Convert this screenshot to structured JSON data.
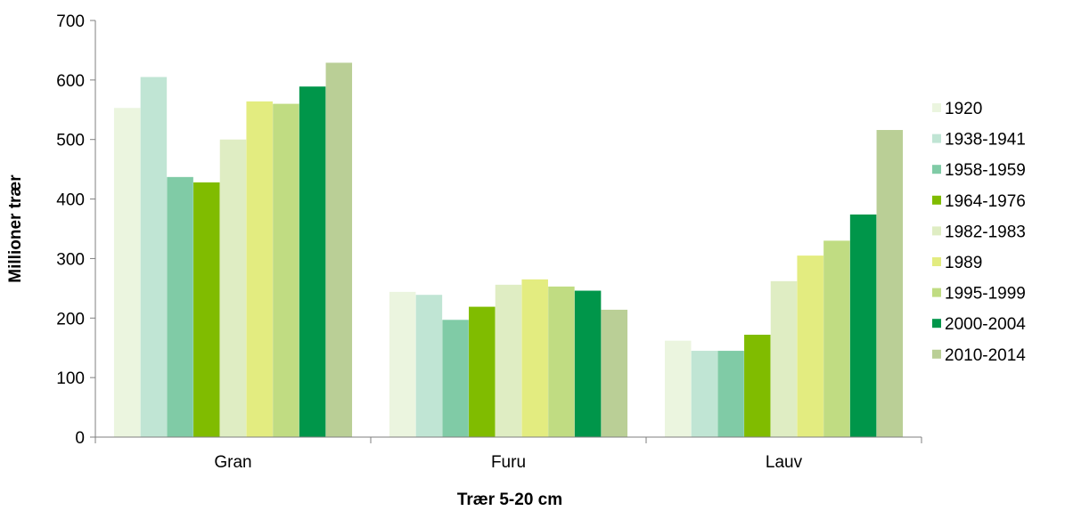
{
  "chart_data": {
    "type": "bar",
    "title": "",
    "xlabel": "Trær 5-20 cm",
    "ylabel": "Millioner trær",
    "ylim": [
      0,
      700
    ],
    "yticks": [
      0,
      100,
      200,
      300,
      400,
      500,
      600,
      700
    ],
    "grid": false,
    "legend_position": "right",
    "categories": [
      "Gran",
      "Furu",
      "Lauv"
    ],
    "series": [
      {
        "name": "1920",
        "color": "#ebf5df",
        "values": [
          553,
          244,
          162
        ]
      },
      {
        "name": "1938-1941",
        "color": "#c0e5d4",
        "values": [
          605,
          239,
          145
        ]
      },
      {
        "name": "1958-1959",
        "color": "#80cba6",
        "values": [
          437,
          197,
          145
        ]
      },
      {
        "name": "1964-1976",
        "color": "#80bc00",
        "values": [
          428,
          219,
          172
        ]
      },
      {
        "name": "1982-1983",
        "color": "#dfedc3",
        "values": [
          500,
          256,
          262
        ]
      },
      {
        "name": "1989",
        "color": "#e3ec80",
        "values": [
          564,
          265,
          305
        ]
      },
      {
        "name": "1995-1999",
        "color": "#c0dc82",
        "values": [
          560,
          253,
          330
        ]
      },
      {
        "name": "2000-2004",
        "color": "#00964a",
        "values": [
          589,
          246,
          374
        ]
      },
      {
        "name": "2010-2014",
        "color": "#bacf96",
        "values": [
          629,
          214,
          516
        ]
      }
    ]
  }
}
